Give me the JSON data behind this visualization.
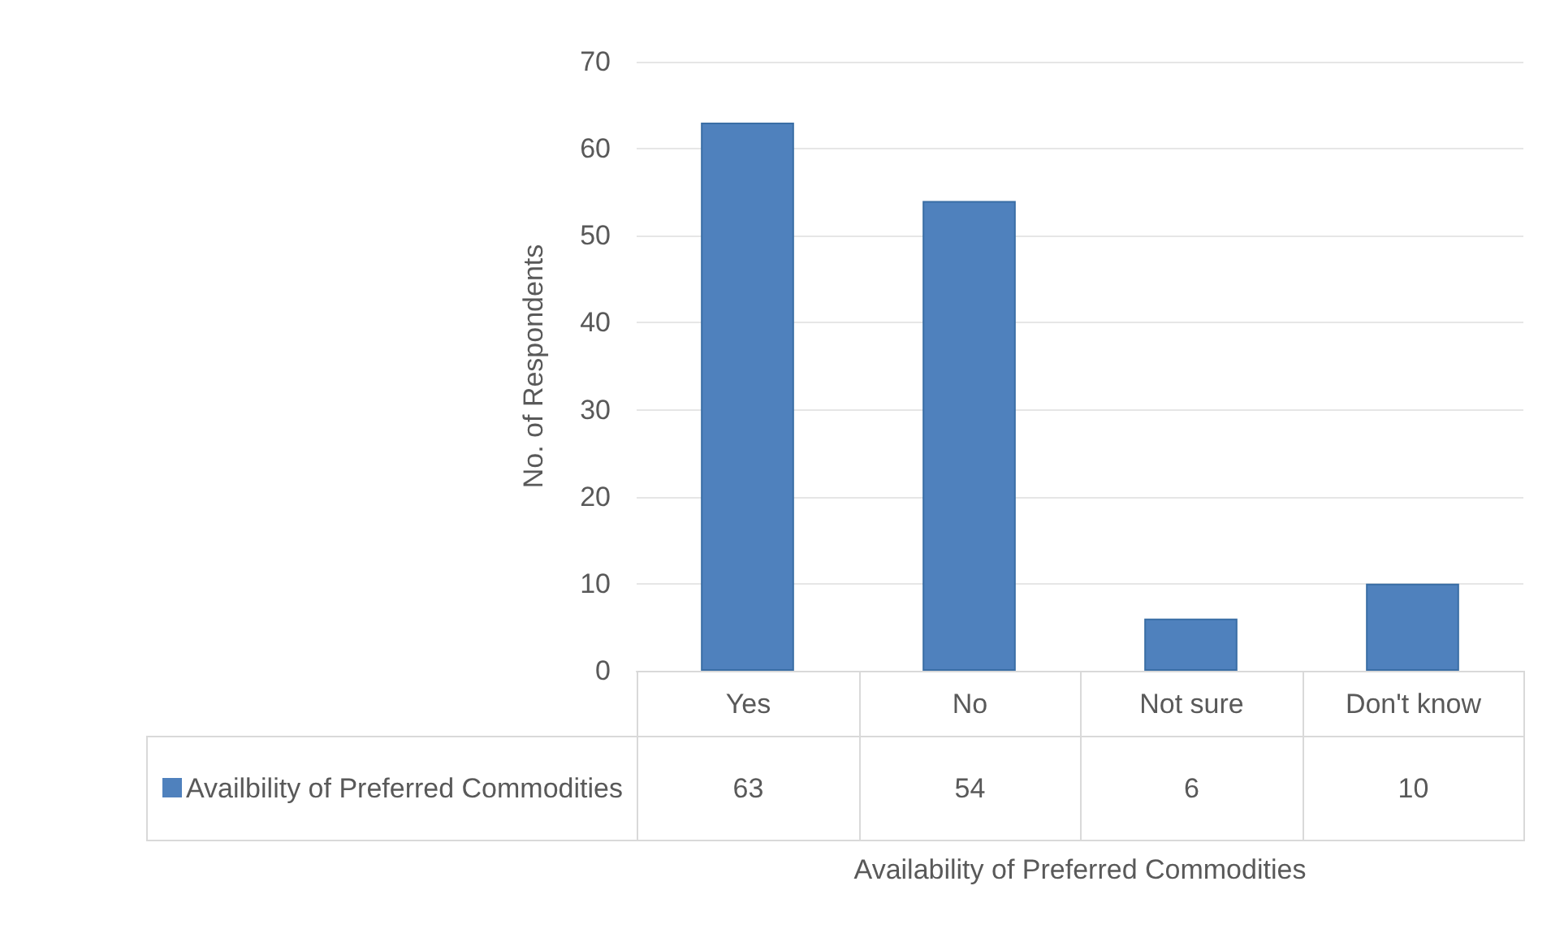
{
  "chart_data": {
    "type": "bar",
    "xlabel": "Availability of Preferred Commodities",
    "ylabel": "No. of Respondents",
    "categories": [
      "Yes",
      "No",
      "Not sure",
      "Don't know"
    ],
    "series": [
      {
        "name": "Availbility of Preferred Commodities",
        "color": "#4f81bd",
        "values": [
          63,
          54,
          6,
          10
        ]
      }
    ],
    "ylim": [
      0,
      70
    ],
    "yticks": [
      0,
      10,
      20,
      30,
      40,
      50,
      60,
      70
    ],
    "grid": "y",
    "legend": "bottom",
    "data_labels": true
  }
}
